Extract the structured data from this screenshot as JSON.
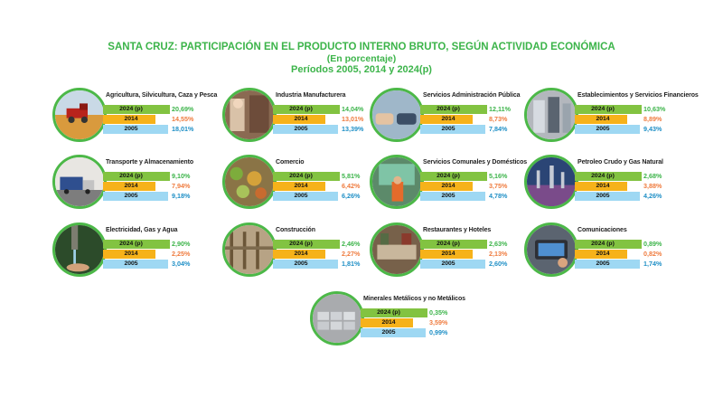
{
  "header": {
    "title": "SANTA CRUZ: PARTICIPACIÓN EN EL PRODUCTO INTERNO BRUTO, SEGÚN ACTIVIDAD ECONÓMICA",
    "subtitle": "(En porcentaje)",
    "periods": "Períodos 2005, 2014 y 2024(p)"
  },
  "colors": {
    "accent_green": "#3cb44a",
    "bar_2024": "#82c341",
    "bar_2014": "#f6b21a",
    "bar_2005": "#9ed8f3",
    "val_2024": "#3cb44a",
    "val_2014": "#ef7b3e",
    "val_2005": "#1e8fc6"
  },
  "chart_data": {
    "type": "bar",
    "title": "SANTA CRUZ: PARTICIPACIÓN EN EL PRODUCTO INTERNO BRUTO, SEGÚN ACTIVIDAD ECONÓMICA",
    "unit": "%",
    "series": [
      {
        "name": "2024 (p)",
        "color": "#82c341"
      },
      {
        "name": "2014",
        "color": "#f6b21a"
      },
      {
        "name": "2005",
        "color": "#9ed8f3"
      }
    ],
    "categories": [
      {
        "name": "Agricultura, Silvicultura, Caza y Pesca",
        "icon": "agriculture-photo",
        "values": {
          "2024 (p)": "20,69%",
          "2014": "14,55%",
          "2005": "18,01%"
        }
      },
      {
        "name": "Industria Manufacturera",
        "icon": "manufacturing-photo",
        "values": {
          "2024 (p)": "14,04%",
          "2014": "13,01%",
          "2005": "13,39%"
        }
      },
      {
        "name": "Servicios Administración Pública",
        "icon": "public-administration-photo",
        "values": {
          "2024 (p)": "12,11%",
          "2014": "8,73%",
          "2005": "7,84%"
        }
      },
      {
        "name": "Establecimientos y Servicios Financieros",
        "icon": "financial-services-photo",
        "values": {
          "2024 (p)": "10,63%",
          "2014": "8,89%",
          "2005": "9,43%"
        }
      },
      {
        "name": "Transporte y Almacenamiento",
        "icon": "transport-photo",
        "values": {
          "2024 (p)": "9,10%",
          "2014": "7,94%",
          "2005": "9,18%"
        }
      },
      {
        "name": "Comercio",
        "icon": "commerce-photo",
        "values": {
          "2024 (p)": "5,81%",
          "2014": "6,42%",
          "2005": "6,26%"
        }
      },
      {
        "name": "Servicios Comunales y Domésticos",
        "icon": "communal-services-photo",
        "values": {
          "2024 (p)": "5,16%",
          "2014": "3,75%",
          "2005": "4,78%"
        }
      },
      {
        "name": "Petroleo Crudo y Gas Natural",
        "icon": "oil-gas-photo",
        "values": {
          "2024 (p)": "2,68%",
          "2014": "3,88%",
          "2005": "4,26%"
        }
      },
      {
        "name": "Electricidad, Gas y Agua",
        "icon": "utilities-photo",
        "values": {
          "2024 (p)": "2,90%",
          "2014": "2,25%",
          "2005": "3,04%"
        }
      },
      {
        "name": "Construcción",
        "icon": "construction-photo",
        "values": {
          "2024 (p)": "2,46%",
          "2014": "2,27%",
          "2005": "1,81%"
        }
      },
      {
        "name": "Restaurantes y Hoteles",
        "icon": "restaurants-photo",
        "values": {
          "2024 (p)": "2,63%",
          "2014": "2,13%",
          "2005": "2,60%"
        }
      },
      {
        "name": "Comunicaciones",
        "icon": "communications-photo",
        "values": {
          "2024 (p)": "0,89%",
          "2014": "0,82%",
          "2005": "1,74%"
        }
      },
      {
        "name": "Minerales Metálicos y no Metálicos",
        "icon": "minerals-photo",
        "values": {
          "2024 (p)": "0,35%",
          "2014": "3,59%",
          "2005": "0,99%"
        }
      }
    ]
  }
}
